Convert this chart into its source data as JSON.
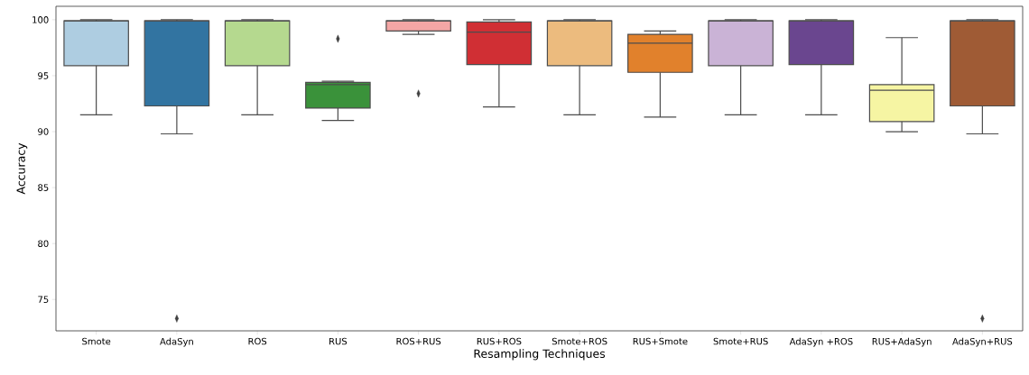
{
  "chart_data": {
    "type": "box",
    "xlabel": "Resampling Techniques",
    "ylabel": "Accuracy",
    "categories": [
      "Smote",
      "AdaSyn",
      "ROS",
      "RUS",
      "ROS+RUS",
      "RUS+ROS",
      "Smote+ROS",
      "RUS+Smote",
      "Smote+RUS",
      "AdaSyn +ROS",
      "RUS+AdaSyn",
      "AdaSyn+RUS"
    ],
    "colors": [
      "#aecde1",
      "#3274a1",
      "#b5d98f",
      "#3a923a",
      "#f4a6a5",
      "#d02f34",
      "#ecbb7e",
      "#e1812c",
      "#cab3d6",
      "#6a468f",
      "#f6f5a3",
      "#9f5b35"
    ],
    "boxes": [
      {
        "low": 91.5,
        "q1": 95.9,
        "median": 99.9,
        "q3": 99.9,
        "high": 100
      },
      {
        "low": 89.8,
        "q1": 92.3,
        "median": 99.9,
        "q3": 99.9,
        "high": 100,
        "outliers": [
          73.3
        ]
      },
      {
        "low": 91.5,
        "q1": 95.9,
        "median": 99.9,
        "q3": 99.9,
        "high": 100
      },
      {
        "low": 91.0,
        "q1": 92.1,
        "median": 94.2,
        "q3": 94.4,
        "high": 94.5,
        "outliers": [
          98.3
        ]
      },
      {
        "low": 98.7,
        "q1": 99.0,
        "median": 99.9,
        "q3": 99.9,
        "high": 100,
        "outliers": [
          93.4
        ]
      },
      {
        "low": 92.2,
        "q1": 96.0,
        "median": 98.9,
        "q3": 99.8,
        "high": 100
      },
      {
        "low": 91.5,
        "q1": 95.9,
        "median": 99.9,
        "q3": 99.9,
        "high": 100
      },
      {
        "low": 91.3,
        "q1": 95.3,
        "median": 97.9,
        "q3": 98.7,
        "high": 99.0
      },
      {
        "low": 91.5,
        "q1": 95.9,
        "median": 99.9,
        "q3": 99.9,
        "high": 100
      },
      {
        "low": 91.5,
        "q1": 96.0,
        "median": 99.9,
        "q3": 99.9,
        "high": 100
      },
      {
        "low": 90.0,
        "q1": 90.9,
        "median": 93.7,
        "q3": 94.2,
        "high": 98.4
      },
      {
        "low": 89.8,
        "q1": 92.3,
        "median": 99.9,
        "q3": 99.9,
        "high": 100,
        "outliers": [
          73.3
        ]
      }
    ],
    "ylim": [
      72.2,
      101.2
    ],
    "yticks": [
      75,
      80,
      85,
      90,
      95,
      100
    ],
    "marker": "diamond"
  }
}
